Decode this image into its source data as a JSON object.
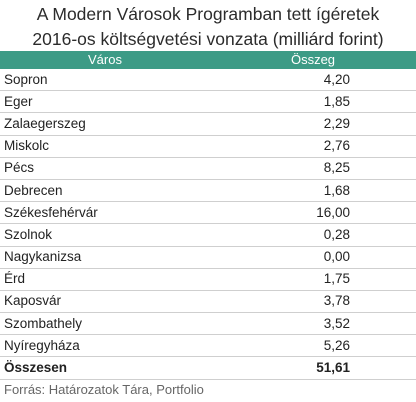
{
  "title": {
    "line1": "A Modern Városok Programban tett ígéretek",
    "line2": "2016-os költségvetési vonzata (milliárd forint)"
  },
  "table": {
    "headers": [
      "Város",
      "Összeg"
    ],
    "rows": [
      {
        "city": "Sopron",
        "value": "4,20"
      },
      {
        "city": "Eger",
        "value": "1,85"
      },
      {
        "city": "Zalaegerszeg",
        "value": "2,29"
      },
      {
        "city": "Miskolc",
        "value": "2,76"
      },
      {
        "city": "Pécs",
        "value": "8,25"
      },
      {
        "city": "Debrecen",
        "value": "1,68"
      },
      {
        "city": "Székesfehérvár",
        "value": "16,00"
      },
      {
        "city": "Szolnok",
        "value": "0,28"
      },
      {
        "city": "Nagykanizsa",
        "value": "0,00"
      },
      {
        "city": "Érd",
        "value": "1,75"
      },
      {
        "city": "Kaposvár",
        "value": "3,78"
      },
      {
        "city": "Szombathely",
        "value": "3,52"
      },
      {
        "city": "Nyíregyháza",
        "value": "5,26"
      }
    ],
    "total": {
      "label": "Összesen",
      "value": "51,61"
    }
  },
  "source": "Forrás: Határozatok Tára, Portfolio",
  "colors": {
    "header_bg": "#3d9b86",
    "header_text": "#ffffff"
  }
}
